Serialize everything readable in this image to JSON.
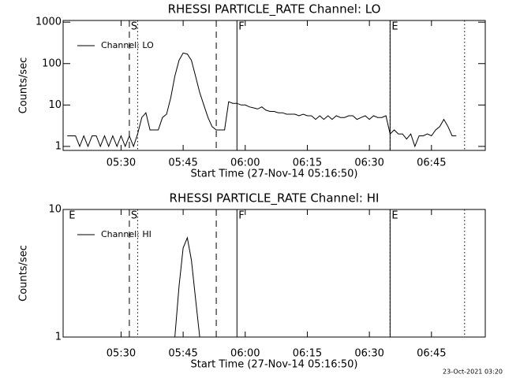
{
  "footer": "23-Oct-2021 03:20",
  "chart_data": [
    {
      "type": "line",
      "title": "RHESSI PARTICLE_RATE Channel: LO",
      "xlabel": "Start Time (27-Nov-14 05:16:50)",
      "ylabel": "Counts/sec",
      "log_y": true,
      "legend": "upper left",
      "xlim": [
        "05:16",
        "06:58"
      ],
      "ylim": [
        0.8,
        1100
      ],
      "xticks": [
        "05:30",
        "05:45",
        "06:00",
        "06:15",
        "06:30",
        "06:45"
      ],
      "yticks": [
        1,
        10,
        100,
        1000
      ],
      "markers": [
        {
          "x": "05:32",
          "style": "dashed"
        },
        {
          "x": "05:34",
          "style": "dotted"
        },
        {
          "x": "05:53",
          "style": "dashed"
        },
        {
          "x": "05:58",
          "style": "solid"
        },
        {
          "x": "06:35",
          "style": "solid"
        },
        {
          "x": "06:35",
          "style": "dotted"
        },
        {
          "x": "06:53",
          "style": "dotted"
        }
      ],
      "annotations": [
        {
          "text": "S",
          "x": "05:32"
        },
        {
          "text": "F",
          "x": "05:58"
        },
        {
          "text": "E",
          "x": "06:35"
        }
      ],
      "series": [
        {
          "name": "Channel: LO",
          "color": "#000000",
          "x": [
            "05:17",
            "05:18",
            "05:19",
            "05:20",
            "05:21",
            "05:22",
            "05:23",
            "05:24",
            "05:25",
            "05:26",
            "05:27",
            "05:28",
            "05:29",
            "05:30",
            "05:31",
            "05:32",
            "05:33",
            "05:34",
            "05:35",
            "05:36",
            "05:37",
            "05:38",
            "05:39",
            "05:40",
            "05:41",
            "05:42",
            "05:43",
            "05:44",
            "05:45",
            "05:46",
            "05:47",
            "05:48",
            "05:49",
            "05:50",
            "05:51",
            "05:52",
            "05:53",
            "05:54",
            "05:55",
            "05:56",
            "05:57",
            "05:58",
            "05:59",
            "06:00",
            "06:01",
            "06:02",
            "06:03",
            "06:04",
            "06:05",
            "06:06",
            "06:07",
            "06:08",
            "06:09",
            "06:10",
            "06:11",
            "06:12",
            "06:13",
            "06:14",
            "06:15",
            "06:16",
            "06:17",
            "06:18",
            "06:19",
            "06:20",
            "06:21",
            "06:22",
            "06:23",
            "06:24",
            "06:25",
            "06:26",
            "06:27",
            "06:28",
            "06:29",
            "06:30",
            "06:31",
            "06:32",
            "06:33",
            "06:34",
            "06:35",
            "06:36",
            "06:37",
            "06:38",
            "06:39",
            "06:40",
            "06:41",
            "06:42",
            "06:43",
            "06:44",
            "06:45",
            "06:46",
            "06:47",
            "06:48",
            "06:49",
            "06:50",
            "06:51"
          ],
          "values": [
            1.8,
            1.8,
            1.8,
            1,
            1.8,
            1,
            1.8,
            1.8,
            1,
            1.8,
            1,
            1.8,
            1,
            1.8,
            1,
            1.8,
            1,
            2,
            5,
            6.5,
            2.5,
            2.5,
            2.5,
            5,
            6,
            15,
            50,
            120,
            180,
            170,
            120,
            50,
            20,
            10,
            5,
            3,
            2.5,
            2.5,
            2.5,
            12,
            11,
            11,
            10,
            10,
            9,
            8.5,
            8,
            9,
            7.5,
            7,
            7,
            6.5,
            6.5,
            6,
            6,
            6,
            5.5,
            6,
            5.5,
            5.5,
            4.5,
            5.5,
            4.5,
            5.5,
            4.5,
            5.5,
            5,
            5,
            5.5,
            5.5,
            4.5,
            5,
            5.5,
            4.5,
            5.5,
            5,
            5,
            5.5,
            2,
            2.5,
            2,
            2,
            1.5,
            2,
            1,
            1.8,
            1.8,
            2,
            1.8,
            2.5,
            3,
            4.5,
            3,
            1.8,
            1.8
          ]
        }
      ]
    },
    {
      "type": "line",
      "title": "RHESSI PARTICLE_RATE Channel: HI",
      "xlabel": "Start Time (27-Nov-14 05:16:50)",
      "ylabel": "Counts/sec",
      "log_y": true,
      "legend": "upper left",
      "xlim": [
        "05:16",
        "06:58"
      ],
      "ylim": [
        1,
        10
      ],
      "xticks": [
        "05:30",
        "05:45",
        "06:00",
        "06:15",
        "06:30",
        "06:45"
      ],
      "yticks": [
        1,
        10
      ],
      "markers": [
        {
          "x": "05:32",
          "style": "dashed"
        },
        {
          "x": "05:34",
          "style": "dotted"
        },
        {
          "x": "05:53",
          "style": "dashed"
        },
        {
          "x": "05:58",
          "style": "solid"
        },
        {
          "x": "06:35",
          "style": "solid"
        },
        {
          "x": "06:35",
          "style": "dotted"
        },
        {
          "x": "06:53",
          "style": "dotted"
        }
      ],
      "annotations": [
        {
          "text": "E",
          "x": "05:17"
        },
        {
          "text": "S",
          "x": "05:32"
        },
        {
          "text": "F",
          "x": "05:58"
        },
        {
          "text": "E",
          "x": "06:35"
        }
      ],
      "series": [
        {
          "name": "Channel: HI",
          "color": "#000000",
          "x": [
            "05:43",
            "05:44",
            "05:45",
            "05:46",
            "05:47",
            "05:48",
            "05:49"
          ],
          "values": [
            1,
            2.5,
            5,
            6,
            4,
            2,
            1
          ]
        }
      ]
    }
  ]
}
